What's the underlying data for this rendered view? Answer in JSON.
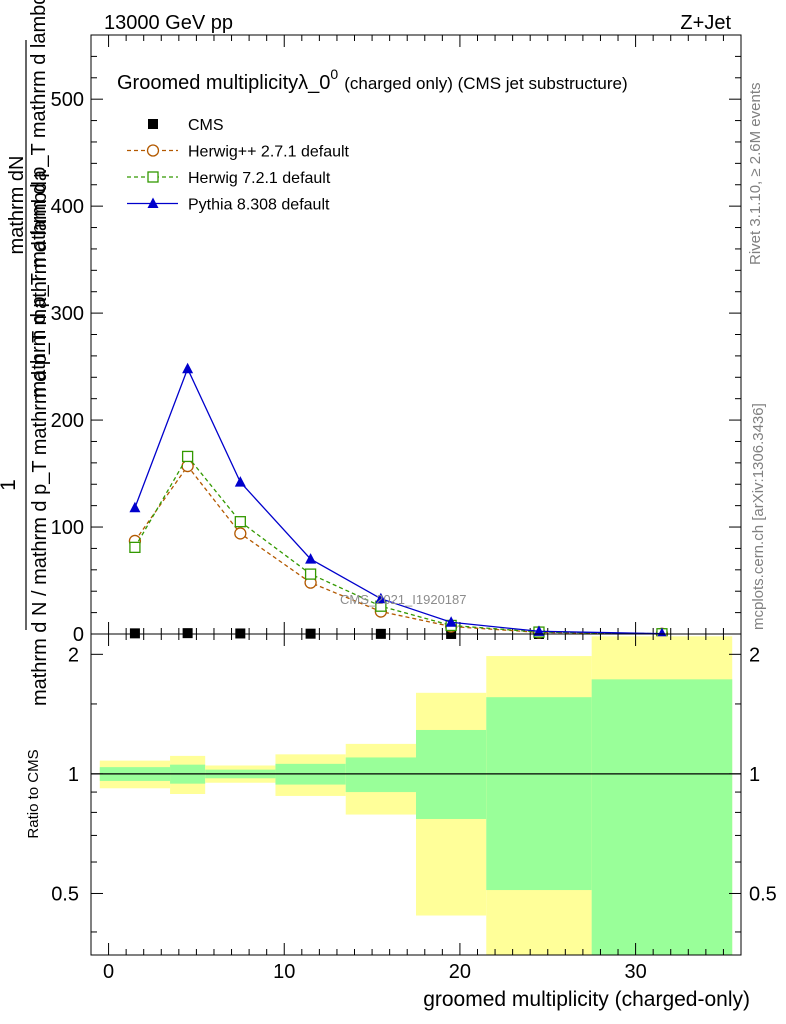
{
  "header": {
    "energy": "13000 GeV pp",
    "process": "Z+Jet"
  },
  "side_labels": {
    "rivet": "Rivet 3.1.10, ≥ 2.6M events",
    "mcplots": "mcplots.cern.ch [arXiv:1306.3436]"
  },
  "chart_data": [
    {
      "type": "line",
      "title": "Groomed multiplicityλ_0⁰ (charged only) (CMS jet substructure)",
      "title_main": "Groomed multiplicityλ_0",
      "title_sup": "0",
      "title_rest": "(charged only) (CMS jet substructure)",
      "watermark": "CMS_2021_I1920187",
      "ylabel_line1": "mathrm dN",
      "ylabel_line2": "mathrm d p_T mathrm d p_T mathrm d lambda",
      "ylabel_numerator": "1",
      "ylabel_denominator": "mathrm d N / mathrm d p_T mathrm d p_T mathrm d lambda",
      "xlim": [
        -1,
        36
      ],
      "ylim": [
        0,
        560
      ],
      "yticks": [
        0,
        100,
        200,
        300,
        400,
        500
      ],
      "grid": false,
      "legend_position": "top-left",
      "series": [
        {
          "name": "CMS",
          "color": "#000000",
          "marker": "filled-square",
          "x": [
            1.5,
            4.5,
            7.5,
            11.5,
            15.5,
            19.5,
            24.5,
            31.5
          ],
          "y": [
            0.6,
            0.8,
            0.5,
            0.3,
            0.15,
            0.05,
            0.01,
            0.001
          ]
        },
        {
          "name": "Herwig++ 2.7.1 default",
          "color": "#b35900",
          "marker": "open-circle",
          "dash": "4,3",
          "x": [
            1.5,
            4.5,
            7.5,
            11.5,
            15.5,
            19.5,
            24.5,
            31.5
          ],
          "y": [
            87,
            157,
            94,
            48,
            21,
            7,
            1.5,
            0.2
          ]
        },
        {
          "name": "Herwig 7.2.1 default",
          "color": "#339900",
          "marker": "open-square",
          "dash": "4,3",
          "x": [
            1.5,
            4.5,
            7.5,
            11.5,
            15.5,
            19.5,
            24.5,
            31.5
          ],
          "y": [
            81,
            166,
            105,
            56,
            26,
            8,
            1.8,
            0.25
          ]
        },
        {
          "name": "Pythia 8.308 default",
          "color": "#0000cc",
          "marker": "filled-triangle",
          "dash": "",
          "x": [
            1.5,
            4.5,
            7.5,
            11.5,
            15.5,
            19.5,
            24.5,
            31.5
          ],
          "y": [
            118,
            248,
            142,
            70,
            33,
            11,
            2.5,
            0.3
          ]
        }
      ]
    },
    {
      "type": "area",
      "ylabel": "Ratio to CMS",
      "xlabel": "groomed multiplicity (charged-only)",
      "xlim": [
        -1,
        36
      ],
      "ylim": [
        0.35,
        2.25
      ],
      "yticks": [
        0.5,
        1,
        2
      ],
      "xticks": [
        0,
        10,
        20,
        30
      ],
      "reference": 1,
      "band_total_color": "#ffff99",
      "band_stat_color": "#99ff99",
      "bins": [
        {
          "lo": -0.5,
          "hi": 3.5,
          "total_lo": 0.92,
          "total_hi": 1.08,
          "stat_lo": 0.96,
          "stat_hi": 1.04
        },
        {
          "lo": 3.5,
          "hi": 5.5,
          "total_lo": 0.89,
          "total_hi": 1.11,
          "stat_lo": 0.945,
          "stat_hi": 1.055
        },
        {
          "lo": 5.5,
          "hi": 9.5,
          "total_lo": 0.95,
          "total_hi": 1.05,
          "stat_lo": 0.975,
          "stat_hi": 1.025
        },
        {
          "lo": 9.5,
          "hi": 13.5,
          "total_lo": 0.88,
          "total_hi": 1.12,
          "stat_lo": 0.94,
          "stat_hi": 1.06
        },
        {
          "lo": 13.5,
          "hi": 17.5,
          "total_lo": 0.79,
          "total_hi": 1.19,
          "stat_lo": 0.9,
          "stat_hi": 1.1
        },
        {
          "lo": 17.5,
          "hi": 21.5,
          "total_lo": 0.44,
          "total_hi": 1.6,
          "stat_lo": 0.77,
          "stat_hi": 1.29
        },
        {
          "lo": 21.5,
          "hi": 27.5,
          "total_lo": 0.35,
          "total_hi": 1.98,
          "stat_lo": 0.51,
          "stat_hi": 1.56
        },
        {
          "lo": 27.5,
          "hi": 35.5,
          "total_lo": 0.35,
          "total_hi": 2.22,
          "stat_lo": 0.35,
          "stat_hi": 1.73
        }
      ]
    }
  ]
}
